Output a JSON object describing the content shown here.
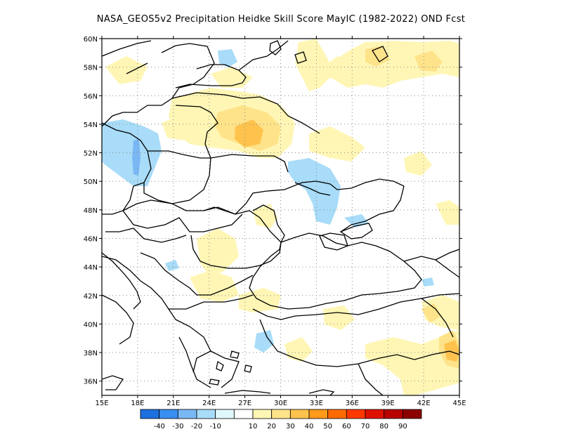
{
  "title": "NASA_GEOS5v2  Precipitation Heidke Skill Score MayIC (1982-2022) OND Fcst",
  "lat_labels": [
    "60N",
    "58N",
    "56N",
    "54N",
    "52N",
    "50N",
    "48N",
    "46N",
    "44N",
    "42N",
    "40N",
    "38N",
    "36N"
  ],
  "lon_labels": [
    "15E",
    "18E",
    "21E",
    "24E",
    "27E",
    "30E",
    "33E",
    "36E",
    "39E",
    "42E",
    "45E"
  ],
  "colorbar": {
    "labels": [
      "-40",
      "-30",
      "-20",
      "-10",
      "10",
      "20",
      "30",
      "40",
      "50",
      "60",
      "70",
      "80",
      "90"
    ],
    "colors": [
      "#1e6fe0",
      "#3a8ef0",
      "#7ab8f5",
      "#a8dcf8",
      "#e0f8fc",
      "#ffffff",
      "#fff6b5",
      "#ffe38a",
      "#ffc34d",
      "#ff9a1a",
      "#ff6a00",
      "#ff3800",
      "#e01000",
      "#b80000",
      "#8c0000"
    ]
  },
  "map": {
    "lon_range": [
      15,
      45
    ],
    "lat_range": [
      35,
      60
    ],
    "variable": "Precipitation Heidke Skill Score"
  }
}
